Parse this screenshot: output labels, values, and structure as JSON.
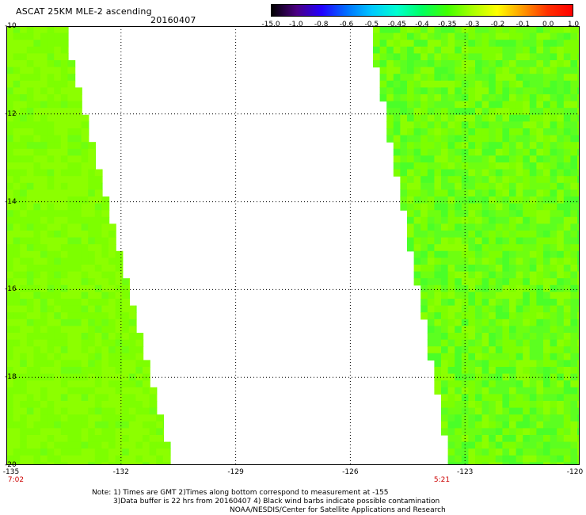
{
  "header": {
    "title": "ASCAT 25KM MLE-2 ascending",
    "date": "20160407"
  },
  "colorbar": {
    "labels": [
      "-15.0",
      "-1.0",
      "-0.8",
      "-0.6",
      "-0.5",
      "-0.45",
      "-0.4",
      "-0.35",
      "-0.3",
      "-0.2",
      "-0.1",
      "0.0",
      "1.0"
    ],
    "colors": [
      "#000000",
      "#4b0082",
      "#2200ff",
      "#0070ff",
      "#00c8ff",
      "#00ffd0",
      "#00ff60",
      "#40ff00",
      "#a8ff00",
      "#ffff00",
      "#ff9a00",
      "#ff3000",
      "#ff0000"
    ]
  },
  "map": {
    "lat_range": [
      -20,
      -10
    ],
    "lon_range": [
      -135,
      -120
    ],
    "lat_ticks": [
      "-10",
      "-12",
      "-14",
      "-16",
      "-18",
      "-20"
    ],
    "lon_ticks": [
      "-135",
      "-132",
      "-129",
      "-126",
      "-123",
      "-120"
    ],
    "swath_colors": [
      "#8cff00",
      "#7dff00",
      "#6eff10",
      "#5cff20",
      "#4aff28"
    ]
  },
  "times": {
    "left": "7:02",
    "right": "5:21"
  },
  "notes": {
    "line1": "Note: 1) Times are GMT 2)Times along bottom correspond to measurement at -155",
    "line2": "3)Data buffer is 22 hrs from 20160407 4) Black wind barbs indicate possible contamination",
    "line3": "NOAA/NESDIS/Center for Satellite Applications and Research"
  }
}
